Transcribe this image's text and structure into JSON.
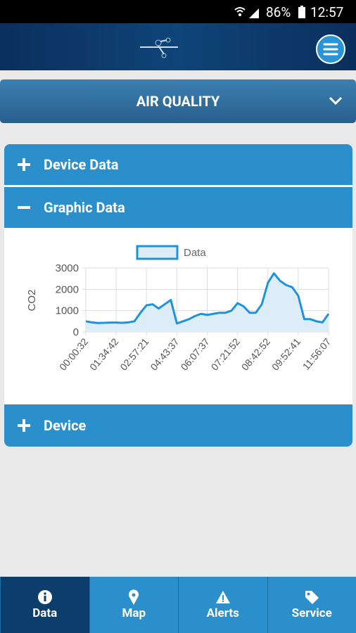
{
  "status_bar": {
    "battery": "86%",
    "time": "12:57"
  },
  "dropdown": {
    "label": "AIR QUALITY"
  },
  "accordion": {
    "sections": [
      {
        "label": "Device Data"
      },
      {
        "label": "Graphic Data"
      },
      {
        "label": "Device"
      }
    ]
  },
  "chart_data": {
    "type": "line",
    "y_label": "CO2",
    "legend": "Data",
    "color": "#1f93d9",
    "fill": "#dcedf8",
    "grid": true,
    "categories": [
      "00:00:32",
      null,
      null,
      null,
      null,
      "01:34:42",
      null,
      null,
      null,
      null,
      "02:57:21",
      null,
      null,
      null,
      null,
      "04:43:37",
      null,
      null,
      null,
      null,
      "06:07:37",
      null,
      null,
      null,
      null,
      "07:21:52",
      null,
      null,
      null,
      null,
      "08:42:52",
      null,
      null,
      null,
      null,
      "09:52:41",
      null,
      null,
      null,
      null,
      "11:56:07"
    ],
    "values": [
      500,
      450,
      420,
      430,
      440,
      440,
      430,
      450,
      500,
      900,
      1250,
      1300,
      1100,
      1300,
      1500,
      400,
      500,
      600,
      750,
      850,
      800,
      850,
      900,
      900,
      1000,
      1350,
      1200,
      900,
      900,
      1300,
      2300,
      2750,
      2400,
      2200,
      2100,
      1700,
      600,
      600,
      500,
      450,
      850
    ],
    "ylim": [
      0,
      3000
    ],
    "yticks": [
      0,
      1000,
      2000,
      3000
    ]
  },
  "nav": {
    "items": [
      "Data",
      "Map",
      "Alerts",
      "Service"
    ]
  }
}
